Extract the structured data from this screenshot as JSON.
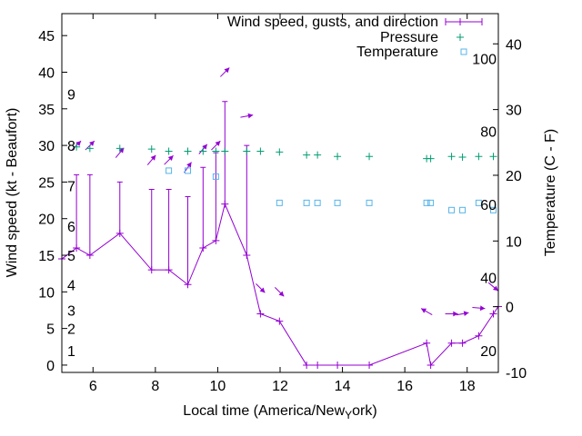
{
  "chart_data": {
    "type": "line",
    "title": "",
    "xlabel_prefix": "Local time (America/New",
    "xlabel_sub": "Y",
    "xlabel_suffix": "ork)",
    "ylabel": "Wind speed (kt - Beaufort)",
    "y2label": "Temperature (C - F)",
    "xlim": [
      5,
      19
    ],
    "ylim": [
      -1,
      48
    ],
    "y2lim": [
      -10,
      44.6
    ],
    "x_ticks": [
      "6",
      "8",
      "10",
      "12",
      "14",
      "16",
      "18"
    ],
    "y_ticks": [
      "0",
      "5",
      "10",
      "15",
      "20",
      "25",
      "30",
      "35",
      "40",
      "45"
    ],
    "y2_ticks": [
      "-10",
      "0",
      "10",
      "20",
      "30",
      "40"
    ],
    "beaufort_labels": [
      "1",
      "2",
      "3",
      "4",
      "5",
      "6",
      "7",
      "8",
      "9"
    ],
    "beaufort_values": [
      2,
      5,
      7.5,
      11,
      15,
      19,
      24.5,
      30,
      37
    ],
    "fahrenheit_labels": [
      "20",
      "40",
      "60",
      "80",
      "100"
    ],
    "legend": {
      "position": "top-right",
      "entries": [
        "Wind speed, gusts, and direction",
        "Pressure",
        "Temperature"
      ]
    },
    "colors": {
      "wind": "#9400d3",
      "pressure": "#009e73",
      "temperature": "#56b4e9"
    },
    "wind": {
      "name": "Wind speed, gusts, and direction",
      "time": [
        5.0,
        5.47,
        5.9,
        6.86,
        7.88,
        8.43,
        9.04,
        9.53,
        9.94,
        10.23,
        10.93,
        11.37,
        11.98,
        12.85,
        13.2,
        13.84,
        14.86,
        16.7,
        16.83,
        17.5,
        17.85,
        18.37,
        18.84,
        19.0
      ],
      "speed": [
        14.5,
        16,
        15,
        18,
        13,
        13,
        11,
        16,
        17,
        22,
        15,
        7,
        6,
        0,
        0,
        0,
        0,
        3,
        0,
        3,
        3,
        4,
        7,
        8
      ],
      "gust": [
        null,
        26,
        26,
        25,
        24,
        24,
        23,
        27,
        29,
        36,
        30,
        null,
        null,
        null,
        null,
        null,
        null,
        null,
        null,
        null,
        null,
        null,
        null,
        null
      ]
    },
    "wind_direction": {
      "time": [
        5.47,
        5.9,
        6.86,
        7.88,
        8.43,
        9.04,
        9.53,
        9.94,
        10.23,
        10.93,
        11.37,
        11.98,
        16.7,
        17.5,
        17.85,
        18.37,
        18.84
      ],
      "level": [
        30,
        30,
        29,
        28,
        28,
        27,
        29.5,
        30,
        40,
        34,
        10.5,
        10,
        7.3,
        7,
        7,
        7.8,
        10.7
      ],
      "heading_deg": [
        45,
        45,
        40,
        40,
        45,
        35,
        40,
        45,
        45,
        80,
        135,
        135,
        300,
        90,
        80,
        95,
        130
      ]
    },
    "pressure": {
      "name": "Pressure",
      "time": [
        5.47,
        5.9,
        6.86,
        7.88,
        8.43,
        9.04,
        9.53,
        9.94,
        10.23,
        10.93,
        11.37,
        11.98,
        12.85,
        13.2,
        13.84,
        14.86,
        16.7,
        16.83,
        17.5,
        17.85,
        18.37,
        18.84
      ],
      "value": [
        29.8,
        29.6,
        29.6,
        29.5,
        29.2,
        29.2,
        29.2,
        29.2,
        29.2,
        29.2,
        29.2,
        29.1,
        28.7,
        28.7,
        28.5,
        28.5,
        28.2,
        28.2,
        28.5,
        28.4,
        28.5,
        28.5
      ]
    },
    "temperature": {
      "name": "Temperature",
      "time": [
        8.43,
        9.04,
        9.94,
        11.98,
        12.85,
        13.2,
        13.84,
        14.86,
        16.7,
        16.83,
        17.5,
        17.85,
        18.37,
        18.84
      ],
      "value": [
        20.7,
        20.7,
        19.8,
        15.8,
        15.8,
        15.8,
        15.8,
        15.8,
        15.8,
        15.8,
        14.7,
        14.7,
        15.8,
        14.7
      ]
    }
  }
}
